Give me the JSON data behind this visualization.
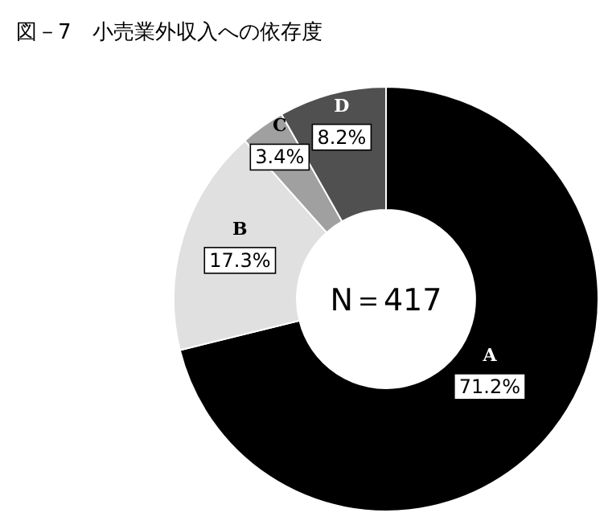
{
  "chart_data": {
    "type": "donut",
    "title": "図－7　小売業外収入への依存度",
    "categories": [
      "A",
      "B",
      "C",
      "D"
    ],
    "values": [
      71.2,
      17.3,
      3.4,
      8.2
    ],
    "colors": [
      "#000000",
      "#e0e0e0",
      "#a0a0a0",
      "#505050"
    ],
    "value_labels": [
      "71.2%",
      "17.3%",
      "3.4%",
      "8.2%"
    ],
    "annotations": [
      "N＝417"
    ]
  }
}
